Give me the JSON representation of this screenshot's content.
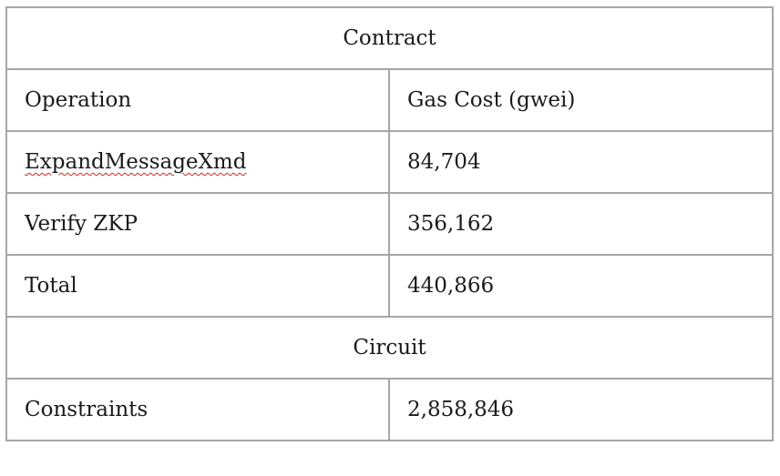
{
  "table": {
    "contract_header": "Contract",
    "columns": [
      "Operation",
      "Gas Cost (gwei)"
    ],
    "contract_rows": [
      {
        "operation": "ExpandMessageXmd",
        "gas": "84,704"
      },
      {
        "operation": "Verify ZKP",
        "gas": "356,162"
      },
      {
        "operation": "Total",
        "gas": "440,866"
      }
    ],
    "circuit_header": "Circuit",
    "circuit_rows": [
      {
        "label": "Constraints",
        "value": "2,858,846"
      }
    ]
  },
  "colors": {
    "border": "#a6a6a6",
    "text": "#1a1a1a",
    "spellcheck_underline": "#e02020"
  }
}
